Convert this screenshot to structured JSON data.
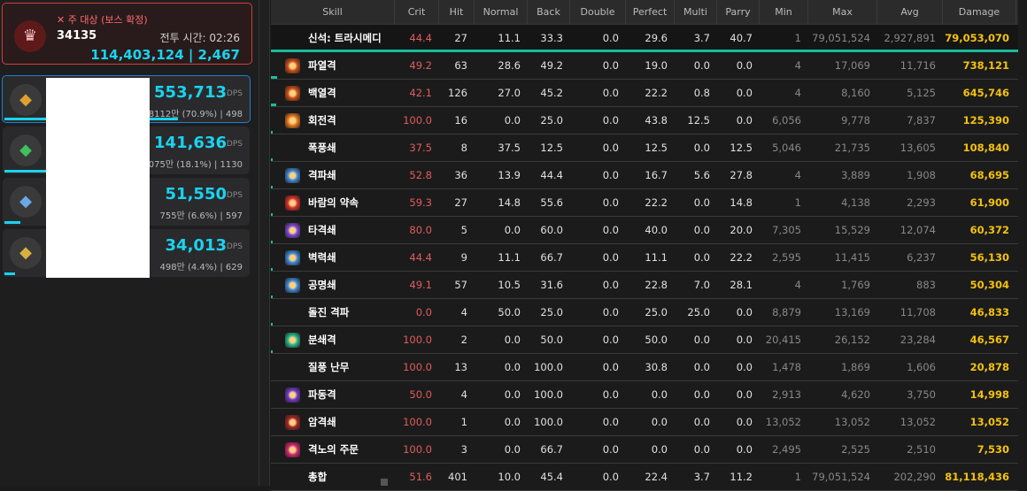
{
  "boss": {
    "title": "주 대상 (보스 확정)",
    "id": "34135",
    "time_label": "전투 시간: 02:26",
    "damage": "114,403,124 | 2,467"
  },
  "players": [
    {
      "dps": "553,713",
      "unit": "DPS",
      "info": "8112만 (70.9%) | 498",
      "share": 70.9,
      "color": "#e0a030",
      "icon": "flame-crest-icon"
    },
    {
      "dps": "141,636",
      "unit": "DPS",
      "info": "2075만 (18.1%) | 1130",
      "share": 18.1,
      "color": "#3fbf5f",
      "icon": "bow-icon"
    },
    {
      "dps": "51,550",
      "unit": "DPS",
      "info": "755만 (6.6%) | 597",
      "share": 6.6,
      "color": "#6aa8e8",
      "icon": "shield-icon"
    },
    {
      "dps": "34,013",
      "unit": "DPS",
      "info": "498만 (4.4%) | 629",
      "share": 4.4,
      "color": "#d8b040",
      "icon": "lyre-icon"
    }
  ],
  "columns": [
    "Skill",
    "Crit",
    "Hit",
    "Normal",
    "Back",
    "Double",
    "Perfect",
    "Multi",
    "Parry",
    "Min",
    "Max",
    "Avg",
    "Damage"
  ],
  "rows": [
    {
      "skill": "신석: 트라시메디",
      "v": [
        "44.4",
        "27",
        "11.1",
        "33.3",
        "0.0",
        "29.6",
        "3.7",
        "40.7",
        "1",
        "79,051,524",
        "2,927,891",
        "79,053,070"
      ],
      "icon": "",
      "share": 97.5
    },
    {
      "skill": "파열격",
      "v": [
        "49.2",
        "63",
        "28.6",
        "49.2",
        "0.0",
        "19.0",
        "0.0",
        "0.0",
        "4",
        "17,069",
        "11,716",
        "738,121"
      ],
      "icon": "#c8501a",
      "share": 0.9
    },
    {
      "skill": "백열격",
      "v": [
        "42.1",
        "126",
        "27.0",
        "45.2",
        "0.0",
        "22.2",
        "0.8",
        "0.0",
        "4",
        "8,160",
        "5,125",
        "645,746"
      ],
      "icon": "#c8501a",
      "share": 0.8
    },
    {
      "skill": "회전격",
      "v": [
        "100.0",
        "16",
        "0.0",
        "25.0",
        "0.0",
        "43.8",
        "12.5",
        "0.0",
        "6,056",
        "9,778",
        "7,837",
        "125,390"
      ],
      "icon": "#e07a20",
      "share": 0.2
    },
    {
      "skill": "폭풍쇄",
      "v": [
        "37.5",
        "8",
        "37.5",
        "12.5",
        "0.0",
        "12.5",
        "0.0",
        "12.5",
        "5,046",
        "21,735",
        "13,605",
        "108,840"
      ],
      "icon": "",
      "share": 0.1
    },
    {
      "skill": "격파쇄",
      "v": [
        "52.8",
        "36",
        "13.9",
        "44.4",
        "0.0",
        "16.7",
        "5.6",
        "27.8",
        "4",
        "3,889",
        "1,908",
        "68,695"
      ],
      "icon": "#3a8ad8",
      "share": 0.1
    },
    {
      "skill": "바람의 약속",
      "v": [
        "59.3",
        "27",
        "14.8",
        "55.6",
        "0.0",
        "22.2",
        "0.0",
        "14.8",
        "1",
        "4,138",
        "2,293",
        "61,900"
      ],
      "icon": "#d83030",
      "share": 0.1
    },
    {
      "skill": "타격쇄",
      "v": [
        "80.0",
        "5",
        "0.0",
        "60.0",
        "0.0",
        "40.0",
        "0.0",
        "20.0",
        "7,305",
        "15,529",
        "12,074",
        "60,372"
      ],
      "icon": "#7a4ad8",
      "share": 0.1
    },
    {
      "skill": "벽력쇄",
      "v": [
        "44.4",
        "9",
        "11.1",
        "66.7",
        "0.0",
        "11.1",
        "0.0",
        "22.2",
        "2,595",
        "11,415",
        "6,237",
        "56,130"
      ],
      "icon": "#3a8ad8",
      "share": 0.1
    },
    {
      "skill": "공명쇄",
      "v": [
        "49.1",
        "57",
        "10.5",
        "31.6",
        "0.0",
        "22.8",
        "7.0",
        "28.1",
        "4",
        "1,769",
        "883",
        "50,304"
      ],
      "icon": "#3a8ad8",
      "share": 0.1
    },
    {
      "skill": "돌진 격파",
      "v": [
        "0.0",
        "4",
        "50.0",
        "25.0",
        "0.0",
        "25.0",
        "25.0",
        "0.0",
        "8,879",
        "13,169",
        "11,708",
        "46,833"
      ],
      "icon": "",
      "share": 0.1
    },
    {
      "skill": "분쇄격",
      "v": [
        "100.0",
        "2",
        "0.0",
        "50.0",
        "0.0",
        "50.0",
        "0.0",
        "0.0",
        "20,415",
        "26,152",
        "23,284",
        "46,567"
      ],
      "icon": "#20b890",
      "share": 0.1
    },
    {
      "skill": "질풍 난무",
      "v": [
        "100.0",
        "13",
        "0.0",
        "100.0",
        "0.0",
        "30.8",
        "0.0",
        "0.0",
        "1,478",
        "1,869",
        "1,606",
        "20,878"
      ],
      "icon": "",
      "share": 0
    },
    {
      "skill": "파동격",
      "v": [
        "50.0",
        "4",
        "0.0",
        "100.0",
        "0.0",
        "0.0",
        "0.0",
        "0.0",
        "2,913",
        "4,620",
        "3,750",
        "14,998"
      ],
      "icon": "#6a3ad0",
      "share": 0
    },
    {
      "skill": "암격쇄",
      "v": [
        "100.0",
        "1",
        "0.0",
        "100.0",
        "0.0",
        "0.0",
        "0.0",
        "0.0",
        "13,052",
        "13,052",
        "13,052",
        "13,052"
      ],
      "icon": "#a02828",
      "share": 0
    },
    {
      "skill": "격노의 주문",
      "v": [
        "100.0",
        "3",
        "0.0",
        "66.7",
        "0.0",
        "0.0",
        "0.0",
        "0.0",
        "2,495",
        "2,525",
        "2,510",
        "7,530"
      ],
      "icon": "#d02878",
      "share": 0
    },
    {
      "skill": "총합",
      "v": [
        "51.6",
        "401",
        "10.0",
        "45.4",
        "0.0",
        "22.4",
        "3.7",
        "11.2",
        "1",
        "79,051,524",
        "202,290",
        "81,118,436"
      ],
      "icon": "",
      "share": 0
    }
  ]
}
